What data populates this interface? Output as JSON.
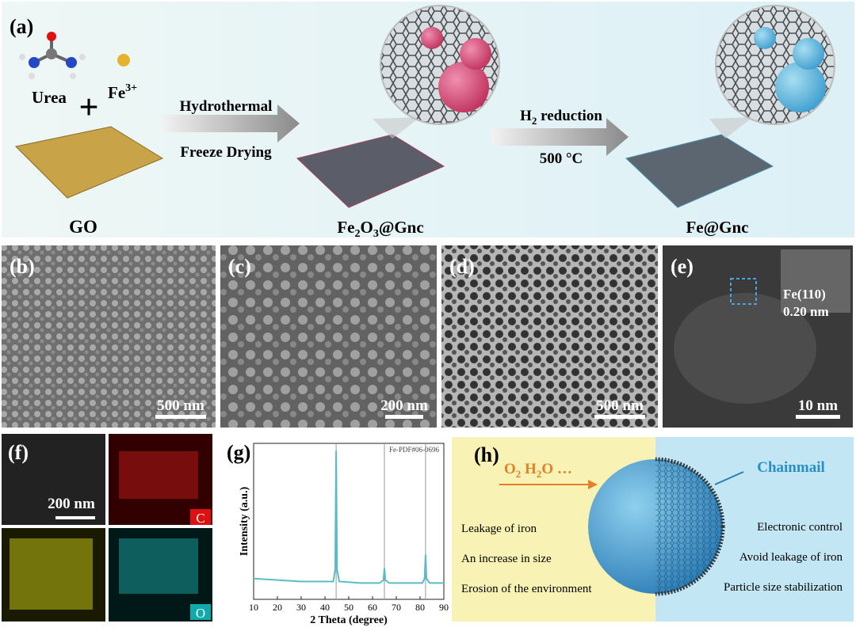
{
  "figure": {
    "panel_a": {
      "label": "(a)",
      "urea": "Urea",
      "fe_ion": [
        "Fe",
        "3+"
      ],
      "plus": "+",
      "go": "GO",
      "step1": [
        "Hydrothermal",
        "Freeze Drying"
      ],
      "intermediate": [
        "Fe",
        "2",
        "O",
        "3",
        "@Gnc"
      ],
      "step2": [
        "H",
        "2",
        " reduction"
      ],
      "temperature": "500 °C",
      "product": "Fe@Gnc"
    },
    "panel_b": {
      "label": "(b)",
      "scale": "500 nm"
    },
    "panel_c": {
      "label": "(c)",
      "scale": "200 nm"
    },
    "panel_d": {
      "label": "(d)",
      "scale": "500 nm"
    },
    "panel_e": {
      "label": "(e)",
      "scale": "10 nm",
      "plane": "Fe(110)",
      "spacing": "0.20 nm"
    },
    "panel_f": {
      "label": "(f)",
      "scale": "200 nm",
      "map_c": "C",
      "map_o": "O"
    },
    "panel_g": {
      "label": "(g)"
    },
    "panel_h": {
      "label": "(h)",
      "reactants": [
        "O",
        "2",
        "  H",
        "2",
        "O …"
      ],
      "chainmail": "Chainmail",
      "left_items": [
        "Leakage of iron",
        "An increase in size",
        "Erosion of the environment"
      ],
      "right_items": [
        "Electronic control",
        "Avoid leakage of iron",
        "Particle size stabilization"
      ]
    }
  },
  "chart_data": {
    "type": "line",
    "title": "Fe-PDF#06-0696",
    "xlabel": "2 Theta (degree)",
    "ylabel": "Intensity (a.u.)",
    "x": [
      10,
      20,
      30,
      40,
      43.5,
      44.3,
      44.7,
      45.1,
      46,
      55,
      63,
      64.6,
      65,
      65.4,
      67,
      75,
      81,
      81.9,
      82.3,
      82.7,
      84,
      90
    ],
    "series": [
      {
        "name": "Fe@Gnc",
        "color": "#5bbdc4",
        "values": [
          14,
          13,
          12,
          12,
          12,
          20,
          100,
          20,
          12,
          11,
          11,
          13,
          21,
          13,
          11,
          11,
          11,
          14,
          30,
          14,
          11,
          11
        ]
      }
    ],
    "reference_peaks": [
      44.7,
      65.0,
      82.3
    ],
    "xlim": [
      10,
      90
    ],
    "xticks": [
      10,
      20,
      30,
      40,
      50,
      60,
      70,
      80,
      90
    ],
    "ylim": [
      0,
      105
    ]
  }
}
